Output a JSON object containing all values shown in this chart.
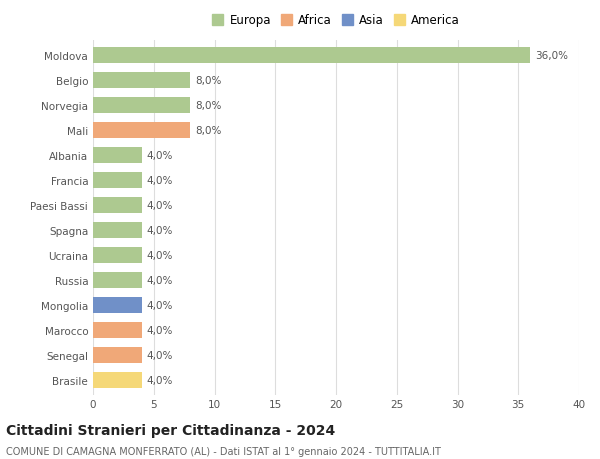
{
  "countries": [
    "Moldova",
    "Belgio",
    "Norvegia",
    "Mali",
    "Albania",
    "Francia",
    "Paesi Bassi",
    "Spagna",
    "Ucraina",
    "Russia",
    "Mongolia",
    "Marocco",
    "Senegal",
    "Brasile"
  ],
  "values": [
    36.0,
    8.0,
    8.0,
    8.0,
    4.0,
    4.0,
    4.0,
    4.0,
    4.0,
    4.0,
    4.0,
    4.0,
    4.0,
    4.0
  ],
  "continents": [
    "Europa",
    "Europa",
    "Europa",
    "Africa",
    "Europa",
    "Europa",
    "Europa",
    "Europa",
    "Europa",
    "Europa",
    "Asia",
    "Africa",
    "Africa",
    "America"
  ],
  "colors": {
    "Europa": "#adc990",
    "Africa": "#f0a878",
    "Asia": "#7090c8",
    "America": "#f5d878"
  },
  "legend_colors": {
    "Europa": "#adc990",
    "Africa": "#f0a878",
    "Asia": "#7090c8",
    "America": "#f5d878"
  },
  "title": "Cittadini Stranieri per Cittadinanza - 2024",
  "subtitle": "COMUNE DI CAMAGNA MONFERRATO (AL) - Dati ISTAT al 1° gennaio 2024 - TUTTITALIA.IT",
  "xlim": [
    0,
    40
  ],
  "xticks": [
    0,
    5,
    10,
    15,
    20,
    25,
    30,
    35,
    40
  ],
  "background_color": "#ffffff",
  "plot_background": "#ffffff",
  "grid_color": "#dddddd",
  "bar_height": 0.65,
  "label_fontsize": 7.5,
  "title_fontsize": 10,
  "subtitle_fontsize": 7,
  "legend_fontsize": 8.5,
  "tick_fontsize": 7.5
}
